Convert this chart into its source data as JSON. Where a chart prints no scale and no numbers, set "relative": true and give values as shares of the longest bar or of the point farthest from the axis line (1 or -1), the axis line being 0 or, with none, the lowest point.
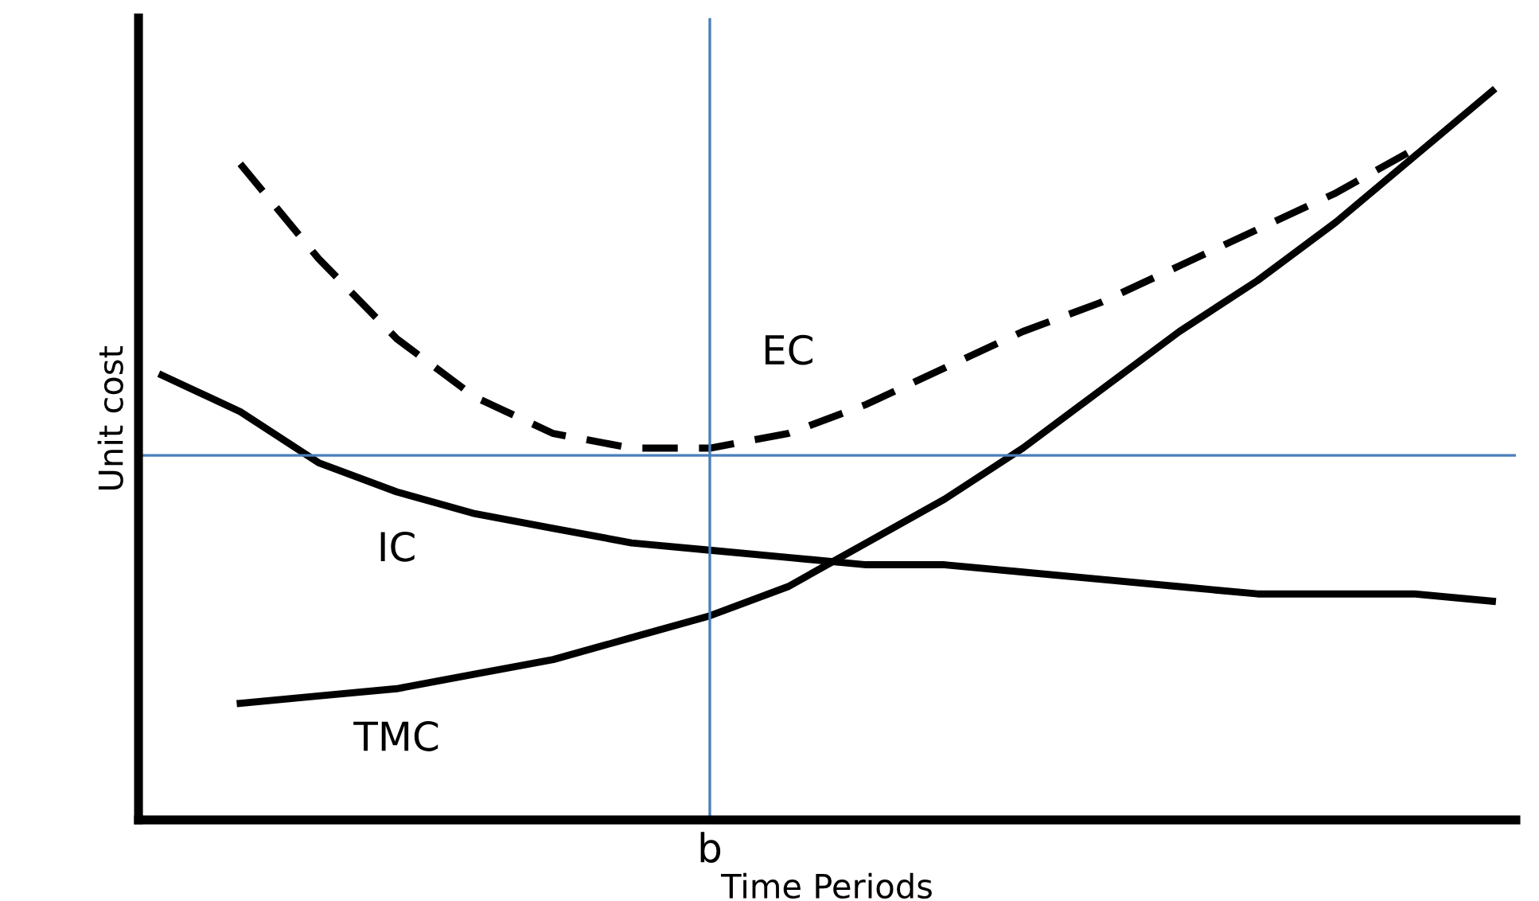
{
  "chart_data": {
    "type": "line",
    "relative": true,
    "xlabel": "Time Periods",
    "ylabel": "Unit cost",
    "categories": [
      null,
      null,
      null,
      null,
      null,
      null,
      null,
      null,
      null,
      null,
      null,
      null,
      null,
      null,
      null,
      null,
      null,
      null
    ],
    "annotations": [
      "b"
    ],
    "series": [
      {
        "name": "EC",
        "color": "#000000",
        "line_style": "dashed",
        "values": [
          null,
          0.9,
          0.77,
          0.66,
          0.58,
          0.53,
          0.51,
          0.51,
          0.53,
          0.57,
          0.62,
          0.67,
          0.71,
          0.76,
          0.81,
          0.86,
          0.92,
          null
        ]
      },
      {
        "name": "IC",
        "color": "#000000",
        "line_style": "solid",
        "values": [
          0.61,
          0.56,
          0.49,
          0.45,
          0.42,
          0.4,
          0.38,
          0.37,
          0.36,
          0.35,
          0.35,
          0.34,
          0.33,
          0.32,
          0.31,
          0.31,
          0.31,
          0.3
        ]
      },
      {
        "name": "TMC",
        "color": "#000000",
        "line_style": "solid",
        "values": [
          null,
          0.16,
          0.17,
          0.18,
          0.2,
          0.22,
          0.25,
          0.28,
          0.32,
          0.38,
          0.44,
          0.51,
          0.59,
          0.67,
          0.74,
          0.82,
          0.91,
          1.0
        ]
      }
    ],
    "ref_lines": [
      {
        "axis": "y",
        "value": 0.5,
        "color": "#4a7ebb"
      }
    ],
    "legend": false,
    "marker": "none",
    "tick_labels": false
  }
}
